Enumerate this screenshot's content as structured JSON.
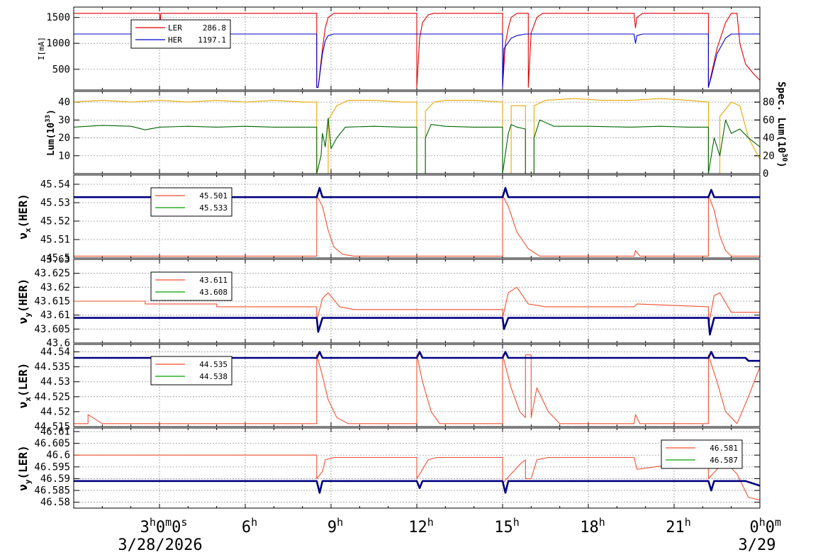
{
  "colors": {
    "ler": "#e00000",
    "her": "#0000cc",
    "lum": "#e6a800",
    "spec": "#006400",
    "tune_red": "#f05030",
    "tune_green": "#00a000",
    "tune_blue": "#000080"
  },
  "x_axis": {
    "ticks": [
      {
        "t": 3,
        "label": "3",
        "sup": "h",
        "tail": "0",
        "tail_sup": "m",
        "tail2": "0",
        "tail2_sup": "s"
      },
      {
        "t": 6,
        "label": "6",
        "sup": "h"
      },
      {
        "t": 9,
        "label": "9",
        "sup": "h"
      },
      {
        "t": 12,
        "label": "12",
        "sup": "h"
      },
      {
        "t": 15,
        "label": "15",
        "sup": "h"
      },
      {
        "t": 18,
        "label": "18",
        "sup": "h"
      },
      {
        "t": 21,
        "label": "21",
        "sup": "h"
      },
      {
        "t": 24,
        "label": "0",
        "sup": "h",
        "tail": "0",
        "tail_sup": "m"
      }
    ],
    "date_left": "3/28/2026",
    "date_right": "3/29"
  },
  "chart_data": [
    {
      "id": "current",
      "type": "line",
      "ylabel": "I[mA]",
      "ylim": [
        100,
        1700
      ],
      "yticks": [
        500,
        1000,
        1500
      ],
      "grid": true,
      "legend": [
        {
          "name": "LER",
          "value": "286.8",
          "color": "#e00000"
        },
        {
          "name": "HER",
          "value": "1197.1",
          "color": "#0000cc"
        }
      ],
      "series": [
        {
          "name": "LER",
          "color": "#e00000",
          "x": [
            0,
            3.0,
            3.02,
            3.05,
            8.5,
            8.5,
            8.55,
            8.7,
            8.8,
            8.9,
            9.1,
            9.3,
            12.0,
            12.0,
            12.1,
            12.2,
            12.4,
            12.6,
            15.0,
            15.0,
            15.1,
            15.2,
            15.3,
            15.5,
            15.6,
            15.7,
            15.9,
            15.9,
            16.0,
            16.2,
            16.4,
            16.6,
            19.6,
            19.65,
            19.7,
            19.9,
            22.2,
            22.2,
            22.3,
            22.5,
            22.8,
            23.0,
            23.2,
            23.3,
            23.5,
            23.8,
            24.0
          ],
          "y": [
            1580,
            1580,
            1400,
            1580,
            1580,
            150,
            150,
            900,
            1300,
            1500,
            1580,
            1580,
            1580,
            150,
            1100,
            1400,
            1550,
            1580,
            1580,
            150,
            1000,
            1300,
            1500,
            1580,
            1580,
            1580,
            1580,
            150,
            1200,
            1500,
            1580,
            1580,
            1580,
            1300,
            1500,
            1580,
            1580,
            150,
            400,
            900,
            1400,
            1580,
            1580,
            1000,
            600,
            400,
            290
          ]
        },
        {
          "name": "HER",
          "color": "#0000cc",
          "x": [
            0,
            3.0,
            3.02,
            3.05,
            8.5,
            8.5,
            8.55,
            8.7,
            8.8,
            8.9,
            9.1,
            9.3,
            15.0,
            15.0,
            15.05,
            15.3,
            15.5,
            15.8,
            19.6,
            19.65,
            19.7,
            19.9,
            22.2,
            22.2,
            22.3,
            22.5,
            22.8,
            23.0,
            24.0
          ],
          "y": [
            1180,
            1180,
            1120,
            1180,
            1180,
            150,
            150,
            800,
            1050,
            1150,
            1180,
            1180,
            1180,
            150,
            900,
            1100,
            1150,
            1180,
            1180,
            1000,
            1150,
            1180,
            1180,
            150,
            350,
            800,
            1100,
            1180,
            1180
          ]
        }
      ]
    },
    {
      "id": "luminosity",
      "type": "line",
      "ylabel": "Lum(10",
      "ylabel_sup": "33",
      "ylabel_tail": ")",
      "ylim": [
        0,
        46
      ],
      "yticks": [
        10,
        20,
        30,
        40
      ],
      "y2label": "Spec. Lum(10",
      "y2label_sup": "30",
      "y2label_tail": ")",
      "y2lim": [
        0,
        92
      ],
      "y2ticks": [
        0,
        20,
        40,
        60,
        80
      ],
      "grid": true,
      "series": [
        {
          "name": "Lum",
          "color": "#e6a800",
          "x": [
            0,
            1.0,
            2.0,
            3.0,
            4.0,
            5.0,
            6.0,
            7.0,
            8.0,
            8.5,
            8.5,
            8.9,
            8.9,
            9.2,
            9.6,
            10.5,
            11.5,
            12.0,
            12.0,
            12.3,
            12.3,
            12.6,
            13.0,
            14.0,
            15.0,
            15.0,
            15.3,
            15.3,
            15.8,
            15.8,
            16.1,
            16.1,
            16.5,
            17.5,
            18.5,
            19.5,
            20.5,
            21.5,
            22.2,
            22.2,
            22.6,
            22.6,
            23.0,
            23.3,
            23.6,
            24.0
          ],
          "y": [
            40,
            41,
            40,
            41,
            40,
            41,
            40,
            41,
            40,
            40,
            0,
            0,
            30,
            38,
            41,
            41,
            40,
            40,
            0,
            0,
            35,
            40,
            41,
            41,
            40,
            0,
            0,
            38,
            38,
            0,
            0,
            38,
            41,
            42,
            41,
            41,
            42,
            41,
            40,
            0,
            0,
            32,
            40,
            38,
            20,
            8
          ]
        },
        {
          "name": "Spec",
          "color": "#006400",
          "x": [
            0,
            1.0,
            2.0,
            2.5,
            3.0,
            4.0,
            5.0,
            6.0,
            7.0,
            8.5,
            8.5,
            8.65,
            8.7,
            8.8,
            8.9,
            9.0,
            9.2,
            9.5,
            10.5,
            11.5,
            12.0,
            12.0,
            12.3,
            12.3,
            12.5,
            13.0,
            14.0,
            15.0,
            15.0,
            15.2,
            15.3,
            15.5,
            15.8,
            15.8,
            16.1,
            16.1,
            16.3,
            16.8,
            18.0,
            19.5,
            20.5,
            21.5,
            22.2,
            22.2,
            22.4,
            22.6,
            22.8,
            23.0,
            23.3,
            23.6,
            24.0
          ],
          "y": [
            52,
            54,
            53,
            49,
            52,
            53,
            52,
            53,
            52,
            52,
            0,
            20,
            45,
            30,
            62,
            28,
            40,
            52,
            53,
            52,
            52,
            0,
            0,
            40,
            55,
            53,
            52,
            52,
            0,
            45,
            55,
            52,
            50,
            0,
            0,
            40,
            60,
            53,
            53,
            52,
            53,
            52,
            52,
            0,
            40,
            20,
            60,
            45,
            50,
            40,
            30
          ]
        }
      ]
    },
    {
      "id": "nux_her",
      "type": "line",
      "ylabel": "ν",
      "ylabel_sub": "x",
      "ylabel_tail": "(HER)",
      "ylim": [
        45.5,
        45.545
      ],
      "yticks": [
        45.5,
        45.51,
        45.52,
        45.53,
        45.54
      ],
      "ytick_labels": [
        "45.5",
        "45.51",
        "45.52",
        "45.53",
        "45.54"
      ],
      "grid": true,
      "legend": [
        {
          "name": "",
          "value": "45.501",
          "color": "#f05030"
        },
        {
          "name": "",
          "value": "45.533",
          "color": "#00a000"
        }
      ],
      "series": [
        {
          "name": "red",
          "color": "#f05030",
          "x": [
            0,
            8.5,
            8.5,
            8.7,
            8.9,
            9.1,
            9.4,
            9.8,
            15.0,
            15.0,
            15.2,
            15.5,
            15.9,
            16.3,
            19.6,
            19.65,
            19.8,
            22.2,
            22.2,
            22.4,
            22.6,
            22.8,
            23.0,
            24.0
          ],
          "y": [
            45.501,
            45.501,
            45.534,
            45.528,
            45.515,
            45.506,
            45.502,
            45.501,
            45.501,
            45.534,
            45.528,
            45.514,
            45.505,
            45.501,
            45.501,
            45.504,
            45.501,
            45.501,
            45.534,
            45.526,
            45.512,
            45.504,
            45.501,
            45.501
          ]
        },
        {
          "name": "blue",
          "color": "#000080",
          "x": [
            0,
            2,
            4,
            6,
            8,
            8.5,
            8.6,
            8.7,
            9,
            12,
            15,
            15.1,
            15.2,
            18,
            22.2,
            22.3,
            22.4,
            24
          ],
          "y": [
            45.533,
            45.533,
            45.533,
            45.533,
            45.533,
            45.533,
            45.538,
            45.533,
            45.533,
            45.533,
            45.533,
            45.538,
            45.533,
            45.533,
            45.533,
            45.537,
            45.533,
            45.533
          ]
        }
      ]
    },
    {
      "id": "nuy_her",
      "type": "line",
      "ylabel": "ν",
      "ylabel_sub": "y",
      "ylabel_tail": "(HER)",
      "ylim": [
        43.6,
        43.63
      ],
      "yticks": [
        43.6,
        43.605,
        43.61,
        43.615,
        43.62,
        43.625,
        43.63
      ],
      "ytick_labels": [
        "43.6",
        "43.605",
        "43.61",
        "43.615",
        "43.62",
        "43.625",
        "43.63"
      ],
      "grid": true,
      "legend": [
        {
          "name": "",
          "value": "43.611",
          "color": "#f05030"
        },
        {
          "name": "",
          "value": "43.608",
          "color": "#00a000"
        }
      ],
      "series": [
        {
          "name": "red",
          "color": "#f05030",
          "x": [
            0,
            2.5,
            2.5,
            5.0,
            5.0,
            8.5,
            8.5,
            8.7,
            8.9,
            9.3,
            9.8,
            12.0,
            12.0,
            15.0,
            15.0,
            15.2,
            15.5,
            15.9,
            16.5,
            19.6,
            19.7,
            22.2,
            22.2,
            22.4,
            22.6,
            23.0,
            24.0
          ],
          "y": [
            43.615,
            43.615,
            43.614,
            43.614,
            43.613,
            43.613,
            43.608,
            43.616,
            43.618,
            43.613,
            43.612,
            43.612,
            43.612,
            43.612,
            43.609,
            43.618,
            43.62,
            43.614,
            43.613,
            43.613,
            43.614,
            43.613,
            43.606,
            43.617,
            43.618,
            43.611,
            43.611
          ]
        },
        {
          "name": "blue",
          "color": "#000080",
          "x": [
            0,
            2,
            4,
            6,
            8,
            8.5,
            8.55,
            8.7,
            9,
            12,
            15,
            15.05,
            15.2,
            18,
            22.2,
            22.25,
            22.4,
            24
          ],
          "y": [
            43.609,
            43.609,
            43.609,
            43.609,
            43.609,
            43.609,
            43.604,
            43.609,
            43.609,
            43.609,
            43.609,
            43.605,
            43.609,
            43.609,
            43.609,
            43.603,
            43.609,
            43.609
          ]
        }
      ]
    },
    {
      "id": "nux_ler",
      "type": "line",
      "ylabel": "ν",
      "ylabel_sub": "x",
      "ylabel_tail": "(LER)",
      "ylim": [
        44.515,
        44.5425
      ],
      "yticks": [
        44.515,
        44.52,
        44.525,
        44.53,
        44.535,
        44.54
      ],
      "ytick_labels": [
        "44.515",
        "44.52",
        "44.525",
        "44.53",
        "44.535",
        "44.54"
      ],
      "grid": true,
      "legend": [
        {
          "name": "",
          "value": "44.535",
          "color": "#f05030"
        },
        {
          "name": "",
          "value": "44.538",
          "color": "#00a000"
        }
      ],
      "series": [
        {
          "name": "red",
          "color": "#f05030",
          "x": [
            0,
            0.5,
            0.5,
            1.0,
            1.0,
            8.5,
            8.5,
            8.7,
            8.9,
            9.2,
            9.6,
            12.0,
            12.0,
            12.2,
            12.5,
            12.8,
            15.0,
            15.0,
            15.3,
            15.6,
            15.8,
            15.8,
            16.0,
            16.0,
            16.2,
            16.6,
            17.0,
            19.6,
            19.65,
            19.8,
            22.2,
            22.2,
            22.5,
            22.8,
            23.2,
            23.6,
            24.0
          ],
          "y": [
            44.516,
            44.516,
            44.519,
            44.516,
            44.516,
            44.516,
            44.539,
            44.532,
            44.524,
            44.518,
            44.516,
            44.516,
            44.539,
            44.53,
            44.52,
            44.516,
            44.516,
            44.539,
            44.528,
            44.52,
            44.518,
            44.539,
            44.539,
            44.518,
            44.528,
            44.52,
            44.516,
            44.516,
            44.519,
            44.516,
            44.516,
            44.539,
            44.53,
            44.52,
            44.516,
            44.525,
            44.535
          ]
        },
        {
          "name": "blue",
          "color": "#000080",
          "x": [
            0,
            2,
            4,
            6,
            8,
            8.5,
            8.6,
            8.7,
            9,
            12,
            12.1,
            12.2,
            15,
            15.1,
            15.2,
            18,
            22.2,
            22.3,
            22.4,
            23.5,
            23.6,
            24
          ],
          "y": [
            44.538,
            44.538,
            44.538,
            44.538,
            44.538,
            44.538,
            44.54,
            44.538,
            44.538,
            44.538,
            44.54,
            44.538,
            44.538,
            44.54,
            44.538,
            44.538,
            44.538,
            44.54,
            44.538,
            44.538,
            44.537,
            44.537
          ]
        }
      ]
    },
    {
      "id": "nuy_ler",
      "type": "line",
      "ylabel": "ν",
      "ylabel_sub": "y",
      "ylabel_tail": "(LER)",
      "ylim": [
        46.5775,
        46.6115
      ],
      "yticks": [
        46.58,
        46.585,
        46.59,
        46.595,
        46.6,
        46.605,
        46.61
      ],
      "ytick_labels": [
        "46.58",
        "46.585",
        "46.59",
        "46.595",
        "46.6",
        "46.605",
        "46.61"
      ],
      "grid": true,
      "legend": [
        {
          "name": "",
          "value": "46.581",
          "color": "#f05030"
        },
        {
          "name": "",
          "value": "46.587",
          "color": "#00a000"
        }
      ],
      "series": [
        {
          "name": "red",
          "color": "#f05030",
          "x": [
            0,
            2,
            4,
            6,
            8,
            8.5,
            8.5,
            8.7,
            8.8,
            9.1,
            9.6,
            12.0,
            12.0,
            12.2,
            12.4,
            12.7,
            15.0,
            15.0,
            15.3,
            15.6,
            15.8,
            15.8,
            16.0,
            16.2,
            16.6,
            19.6,
            19.7,
            22.2,
            22.2,
            22.5,
            22.8,
            23.2,
            23.6,
            24.0
          ],
          "y": [
            46.6,
            46.6,
            46.6,
            46.6,
            46.6,
            46.6,
            46.59,
            46.593,
            46.598,
            46.599,
            46.599,
            46.599,
            46.59,
            46.594,
            46.598,
            46.599,
            46.599,
            46.588,
            46.592,
            46.596,
            46.598,
            46.59,
            46.59,
            46.598,
            46.599,
            46.599,
            46.594,
            46.598,
            46.59,
            46.594,
            46.597,
            46.592,
            46.582,
            46.581
          ]
        },
        {
          "name": "blue",
          "color": "#000080",
          "x": [
            0,
            2,
            4,
            6,
            8,
            8.5,
            8.6,
            8.7,
            9,
            12,
            12.1,
            12.2,
            15,
            15.1,
            15.2,
            16,
            18,
            22.2,
            22.3,
            22.4,
            23.5,
            24
          ],
          "y": [
            46.589,
            46.589,
            46.589,
            46.589,
            46.589,
            46.589,
            46.584,
            46.589,
            46.589,
            46.589,
            46.586,
            46.589,
            46.589,
            46.584,
            46.589,
            46.589,
            46.589,
            46.589,
            46.585,
            46.589,
            46.589,
            46.587
          ]
        }
      ]
    }
  ]
}
